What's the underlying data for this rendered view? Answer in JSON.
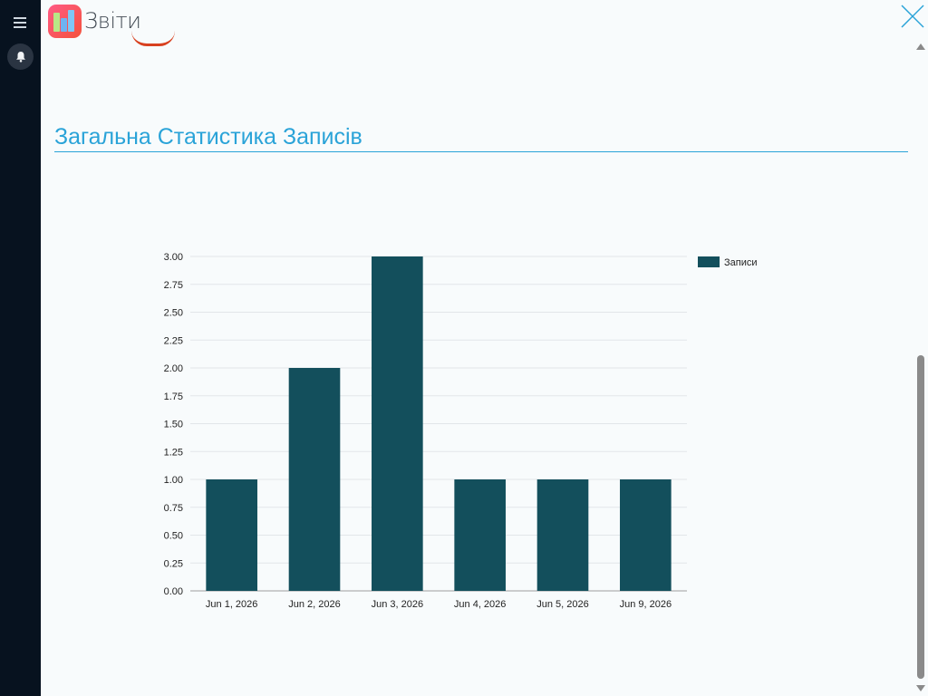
{
  "app": {
    "title": "Звіти"
  },
  "icons": {
    "menu": "hamburger-menu-icon",
    "notifications": "bell-icon",
    "logo": "bar-chart-app-icon",
    "close": "close-x-icon"
  },
  "colors": {
    "sidebar": "#07121f",
    "accent": "#2aa3d8",
    "bar": "#134f5c",
    "logo": "#f4523c"
  },
  "section": {
    "title": "Загальна Статистика Записів"
  },
  "chart_data": {
    "type": "bar",
    "categories": [
      "Jun 1, 2026",
      "Jun 2, 2026",
      "Jun 3, 2026",
      "Jun 4, 2026",
      "Jun 5, 2026",
      "Jun 9, 2026"
    ],
    "series": [
      {
        "name": "Записи",
        "values": [
          1,
          2,
          3,
          1,
          1,
          1
        ],
        "color": "#134f5c"
      }
    ],
    "ylim": [
      0,
      3
    ],
    "yticks": [
      "0.00",
      "0.25",
      "0.50",
      "0.75",
      "1.00",
      "1.25",
      "1.50",
      "1.75",
      "2.00",
      "2.25",
      "2.50",
      "2.75",
      "3.00"
    ],
    "grid": true,
    "legend": "top-right"
  }
}
